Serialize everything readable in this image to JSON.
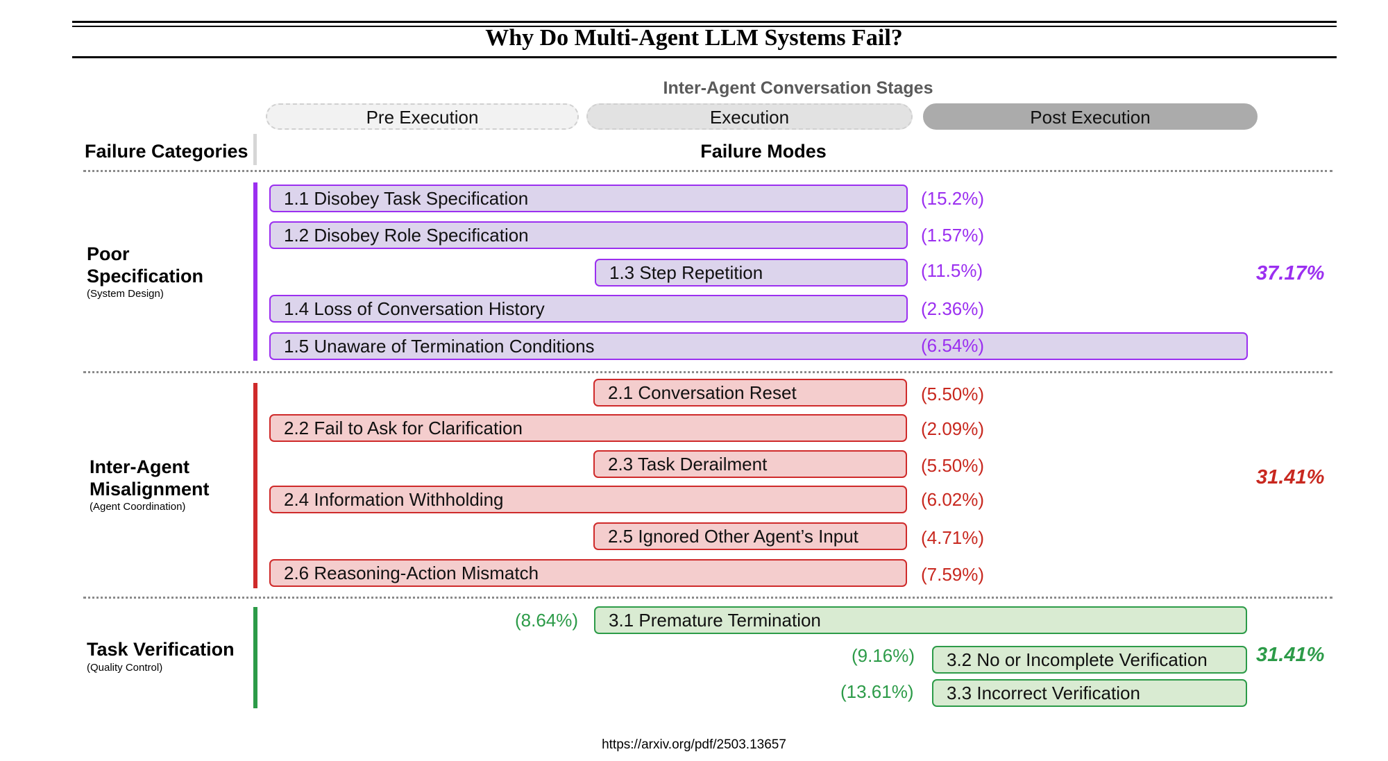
{
  "title": "Why Do Multi-Agent LLM Systems Fail?",
  "stages": {
    "title": "Inter-Agent Conversation Stages",
    "pre": "Pre Execution",
    "exec": "Execution",
    "post": "Post Execution"
  },
  "headers": {
    "categories": "Failure Categories",
    "modes": "Failure Modes"
  },
  "categories": [
    {
      "name": "Poor Specification",
      "subtitle": "(System Design)",
      "total": "37.17%",
      "color": "#9b2ff0",
      "modes": [
        {
          "label": "1.1 Disobey Task Specification",
          "pct": "(15.2%)"
        },
        {
          "label": "1.2 Disobey Role Specification",
          "pct": "(1.57%)"
        },
        {
          "label": "1.3 Step Repetition",
          "pct": "(11.5%)"
        },
        {
          "label": "1.4 Loss of Conversation History",
          "pct": "(2.36%)"
        },
        {
          "label": "1.5 Unaware of Termination Conditions",
          "pct": "(6.54%)"
        }
      ]
    },
    {
      "name": "Inter-Agent Misalignment",
      "subtitle": "(Agent Coordination)",
      "total": "31.41%",
      "color": "#c8281f",
      "modes": [
        {
          "label": "2.1 Conversation Reset",
          "pct": "(5.50%)"
        },
        {
          "label": "2.2 Fail to Ask for Clarification",
          "pct": "(2.09%)"
        },
        {
          "label": "2.3 Task Derailment",
          "pct": "(5.50%)"
        },
        {
          "label": "2.4 Information Withholding",
          "pct": "(6.02%)"
        },
        {
          "label": "2.5 Ignored Other Agent’s Input",
          "pct": "(4.71%)"
        },
        {
          "label": "2.6 Reasoning-Action Mismatch",
          "pct": "(7.59%)"
        }
      ]
    },
    {
      "name": "Task Verification",
      "subtitle": "(Quality Control)",
      "total": "31.41%",
      "color": "#2c9b48",
      "modes": [
        {
          "label": "3.1  Premature Termination",
          "pct": "(8.64%)"
        },
        {
          "label": "3.2 No or Incomplete Verification",
          "pct": "(9.16%)"
        },
        {
          "label": "3.3 Incorrect Verification",
          "pct": "(13.61%)"
        }
      ]
    }
  ],
  "source": "https://arxiv.org/pdf/2503.13657"
}
